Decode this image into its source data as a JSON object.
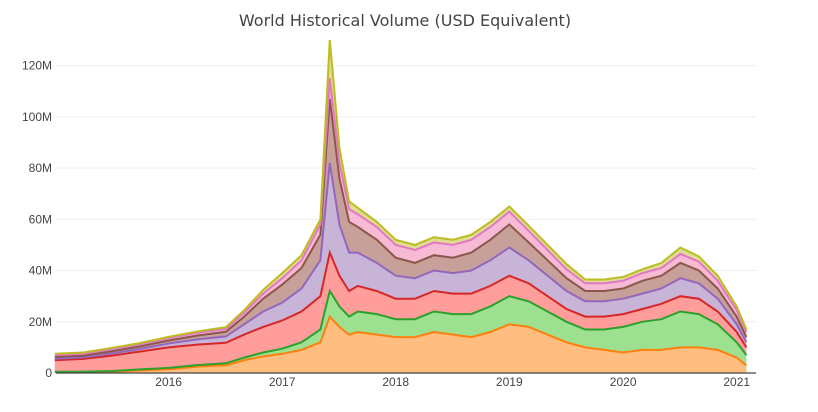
{
  "chart_data": {
    "type": "area",
    "stacked": true,
    "title": "World Historical Volume (USD Equivalent)",
    "xlabel": "",
    "ylabel": "",
    "x_ticks": [
      "2016",
      "2017",
      "2018",
      "2019",
      "2020",
      "2021"
    ],
    "y_ticks": [
      "0",
      "20M",
      "40M",
      "60M",
      "80M",
      "100M",
      "120M"
    ],
    "ylim": [
      0,
      130000000
    ],
    "xlim": [
      "2015-07-05",
      "2021-09-01"
    ],
    "grid": true,
    "legend": "none",
    "x": [
      "2015-07",
      "2015-10",
      "2016-01",
      "2016-04",
      "2016-07",
      "2016-10",
      "2017-01",
      "2017-03",
      "2017-05",
      "2017-07",
      "2017-09",
      "2017-11",
      "2017-12",
      "2018-01",
      "2018-02",
      "2018-03",
      "2018-05",
      "2018-07",
      "2018-09",
      "2018-11",
      "2019-01",
      "2019-03",
      "2019-05",
      "2019-07",
      "2019-09",
      "2019-11",
      "2020-01",
      "2020-03",
      "2020-05",
      "2020-07",
      "2020-09",
      "2020-11",
      "2021-01",
      "2021-03",
      "2021-05",
      "2021-07",
      "2021-08"
    ],
    "series": [
      {
        "color": "#ffbb78",
        "values": [
          0.3,
          0.3,
          0.5,
          1.0,
          1.5,
          2.5,
          3.0,
          5.0,
          6.5,
          7.5,
          9.0,
          12.0,
          22.0,
          18.0,
          15.0,
          16.0,
          15.0,
          14.0,
          14.0,
          16.0,
          15.0,
          14.0,
          16.0,
          19.0,
          18.0,
          15.0,
          12.0,
          10.0,
          9.0,
          8.0,
          9.0,
          9.0,
          10.0,
          10.0,
          9.0,
          6.0,
          3.0
        ]
      },
      {
        "color": "#98df8a",
        "values": [
          0.2,
          0.2,
          0.3,
          0.4,
          0.5,
          0.6,
          0.8,
          1.0,
          1.5,
          2.0,
          3.0,
          5.0,
          10.0,
          8.0,
          7.0,
          8.0,
          8.0,
          7.0,
          7.0,
          8.0,
          8.0,
          9.0,
          10.0,
          11.0,
          10.0,
          9.0,
          8.0,
          7.0,
          8.0,
          10.0,
          11.0,
          12.0,
          14.0,
          13.0,
          10.0,
          6.0,
          4.0
        ]
      },
      {
        "color": "#ff9896",
        "values": [
          4.5,
          5.0,
          6.0,
          7.0,
          8.0,
          8.0,
          8.0,
          9.0,
          10.0,
          11.0,
          12.0,
          13.0,
          15.0,
          12.0,
          10.0,
          10.0,
          9.0,
          8.0,
          8.0,
          8.0,
          8.0,
          8.0,
          8.0,
          8.0,
          7.0,
          6.0,
          5.0,
          5.0,
          5.0,
          5.0,
          5.0,
          6.0,
          6.0,
          6.0,
          5.0,
          4.0,
          3.0
        ]
      },
      {
        "color": "#c5b0d5",
        "values": [
          0.6,
          0.6,
          0.8,
          1.0,
          1.5,
          2.0,
          2.5,
          4.0,
          6.0,
          7.0,
          9.0,
          14.0,
          35.0,
          20.0,
          15.0,
          13.0,
          11.0,
          9.0,
          8.0,
          8.0,
          8.0,
          9.0,
          10.0,
          11.0,
          9.0,
          8.0,
          7.0,
          6.0,
          6.0,
          6.0,
          6.0,
          6.0,
          7.0,
          6.0,
          5.0,
          3.0,
          2.0
        ]
      },
      {
        "color": "#c49c94",
        "values": [
          0.7,
          0.7,
          0.9,
          1.0,
          1.2,
          1.5,
          1.8,
          3.0,
          5.0,
          7.0,
          8.0,
          10.0,
          25.0,
          18.0,
          12.0,
          10.0,
          9.0,
          7.0,
          6.0,
          6.0,
          6.0,
          7.0,
          8.0,
          9.0,
          7.0,
          6.0,
          5.0,
          4.0,
          4.0,
          4.0,
          5.0,
          5.0,
          6.0,
          5.0,
          4.0,
          3.0,
          2.0
        ]
      },
      {
        "color": "#f7b6d2",
        "values": [
          0.7,
          0.7,
          0.8,
          0.8,
          0.9,
          1.0,
          1.1,
          1.5,
          2.0,
          2.5,
          3.0,
          4.0,
          8.0,
          6.0,
          5.0,
          5.0,
          5.0,
          5.0,
          5.0,
          5.0,
          5.0,
          5.0,
          5.0,
          5.0,
          4.5,
          4.0,
          3.5,
          3.0,
          3.0,
          3.0,
          3.0,
          3.0,
          3.5,
          3.5,
          3.0,
          2.5,
          2.0
        ]
      },
      {
        "color": "#dbdb8d",
        "values": [
          0.5,
          0.5,
          0.5,
          0.5,
          0.5,
          0.6,
          0.7,
          1.0,
          1.5,
          2.0,
          2.0,
          2.0,
          15.0,
          6.0,
          3.0,
          2.5,
          2.0,
          2.0,
          2.0,
          2.0,
          2.0,
          2.0,
          2.0,
          2.0,
          2.0,
          2.0,
          2.0,
          1.5,
          1.5,
          1.5,
          1.5,
          2.0,
          2.5,
          2.0,
          2.0,
          1.5,
          1.0
        ]
      }
    ],
    "line_colors": [
      "#ff7f0e",
      "#2ca02c",
      "#d62728",
      "#9467bd",
      "#8c564b",
      "#e377c2",
      "#bcbd22"
    ],
    "value_unit_millions": true
  }
}
